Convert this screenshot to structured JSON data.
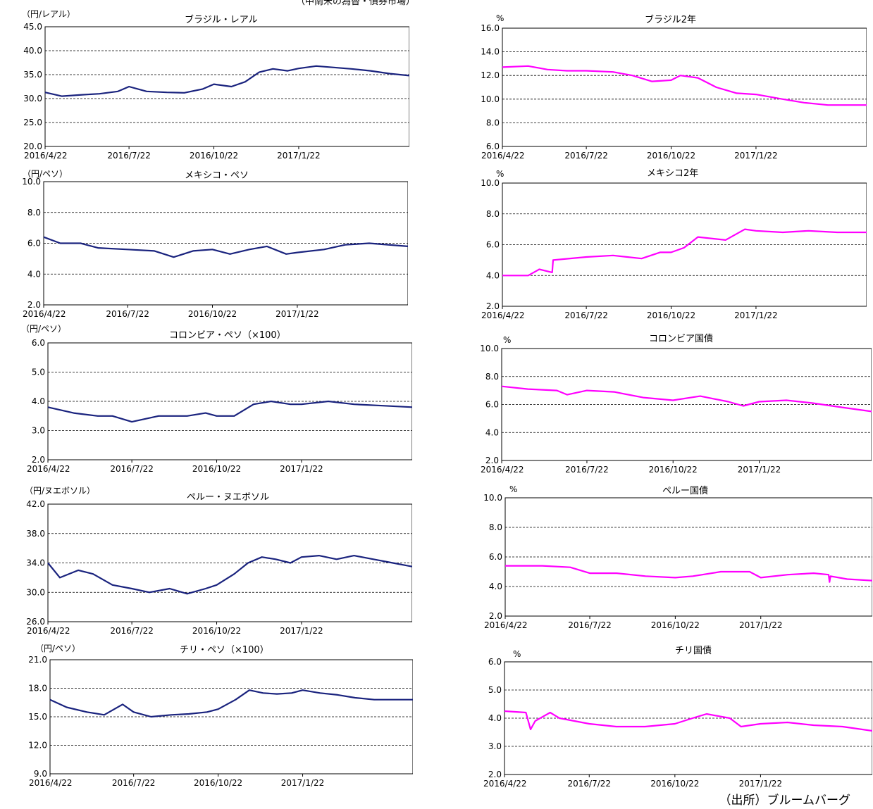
{
  "page": {
    "title": "（中南米の為替・債券市場）",
    "source": "（出所）ブルームバーグ"
  },
  "colors": {
    "currency_line": "#1a237e",
    "bond_line": "#ff00ff"
  },
  "chart_data": [
    {
      "type": "line",
      "title": "ブラジル・レアル",
      "unit": "（円/レアル）",
      "ylim": [
        20,
        45
      ],
      "yticks": [
        "20.0",
        "25.0",
        "30.0",
        "35.0",
        "40.0",
        "45.0"
      ],
      "xticks": [
        "2016/4/22",
        "2016/7/22",
        "2016/10/22",
        "2017/1/22"
      ],
      "xlim": [
        "2016/4/22",
        "2017/5/22"
      ],
      "grid": true,
      "color": "#1a237e",
      "series": [
        {
          "name": "",
          "x": [
            "2016/4/22",
            "2016/5/10",
            "2016/6/1",
            "2016/6/20",
            "2016/7/10",
            "2016/7/22",
            "2016/8/10",
            "2016/9/1",
            "2016/9/20",
            "2016/10/10",
            "2016/10/22",
            "2016/11/10",
            "2016/11/25",
            "2016/12/10",
            "2016/12/25",
            "2017/1/10",
            "2017/1/22",
            "2017/2/10",
            "2017/3/1",
            "2017/3/20",
            "2017/4/10",
            "2017/5/1",
            "2017/5/22"
          ],
          "values": [
            31.3,
            30.5,
            30.8,
            31.0,
            31.5,
            32.5,
            31.5,
            31.3,
            31.2,
            32.0,
            33.0,
            32.5,
            33.5,
            35.5,
            36.2,
            35.8,
            36.3,
            36.8,
            36.5,
            36.2,
            35.8,
            35.2,
            34.8
          ]
        }
      ]
    },
    {
      "type": "line",
      "title": "ブラジル2年",
      "unit": "%",
      "ylim": [
        6,
        16
      ],
      "yticks": [
        "6.0",
        "8.0",
        "10.0",
        "12.0",
        "14.0",
        "16.0"
      ],
      "xticks": [
        "2016/4/22",
        "2016/7/22",
        "2016/10/22",
        "2017/1/22"
      ],
      "xlim": [
        "2016/4/22",
        "2017/5/22"
      ],
      "grid": true,
      "color": "#ff00ff",
      "series": [
        {
          "name": "",
          "x": [
            "2016/4/22",
            "2016/5/20",
            "2016/6/10",
            "2016/7/1",
            "2016/7/22",
            "2016/8/20",
            "2016/9/10",
            "2016/10/1",
            "2016/10/22",
            "2016/11/1",
            "2016/11/20",
            "2016/12/10",
            "2017/1/1",
            "2017/1/22",
            "2017/2/20",
            "2017/3/15",
            "2017/4/10",
            "2017/5/22"
          ],
          "values": [
            12.7,
            12.8,
            12.5,
            12.4,
            12.4,
            12.3,
            12.0,
            11.5,
            11.6,
            12.0,
            11.8,
            11.0,
            10.5,
            10.4,
            10.0,
            9.7,
            9.5,
            9.5
          ]
        }
      ]
    },
    {
      "type": "line",
      "title": "メキシコ・ペソ",
      "unit": "（円/ペソ）",
      "ylim": [
        2,
        10
      ],
      "yticks": [
        "2.0",
        "4.0",
        "6.0",
        "8.0",
        "10.0"
      ],
      "xticks": [
        "2016/4/22",
        "2016/7/22",
        "2016/10/22",
        "2017/1/22"
      ],
      "xlim": [
        "2016/4/22",
        "2017/5/22"
      ],
      "grid": true,
      "color": "#1a237e",
      "series": [
        {
          "name": "",
          "x": [
            "2016/4/22",
            "2016/5/10",
            "2016/6/1",
            "2016/6/20",
            "2016/7/22",
            "2016/8/20",
            "2016/9/10",
            "2016/10/1",
            "2016/10/22",
            "2016/11/10",
            "2016/12/1",
            "2016/12/20",
            "2017/1/10",
            "2017/1/22",
            "2017/2/20",
            "2017/3/15",
            "2017/4/10",
            "2017/5/22"
          ],
          "values": [
            6.4,
            6.0,
            6.0,
            5.7,
            5.6,
            5.5,
            5.1,
            5.5,
            5.6,
            5.3,
            5.6,
            5.8,
            5.3,
            5.4,
            5.6,
            5.9,
            6.0,
            5.8
          ]
        }
      ]
    },
    {
      "type": "line",
      "title": "メキシコ2年",
      "unit": "%",
      "ylim": [
        2,
        10
      ],
      "yticks": [
        "2.0",
        "4.0",
        "6.0",
        "8.0",
        "10.0"
      ],
      "xticks": [
        "2016/4/22",
        "2016/7/22",
        "2016/10/22",
        "2017/1/22"
      ],
      "xlim": [
        "2016/4/22",
        "2017/5/22"
      ],
      "grid": true,
      "color": "#ff00ff",
      "series": [
        {
          "name": "",
          "x": [
            "2016/4/22",
            "2016/5/20",
            "2016/6/1",
            "2016/6/15",
            "2016/6/16",
            "2016/7/22",
            "2016/8/20",
            "2016/9/20",
            "2016/10/10",
            "2016/10/22",
            "2016/11/5",
            "2016/11/20",
            "2016/12/20",
            "2017/1/10",
            "2017/1/22",
            "2017/2/20",
            "2017/3/20",
            "2017/4/20",
            "2017/5/22"
          ],
          "values": [
            4.0,
            4.0,
            4.4,
            4.2,
            5.0,
            5.2,
            5.3,
            5.1,
            5.5,
            5.5,
            5.8,
            6.5,
            6.3,
            7.0,
            6.9,
            6.8,
            6.9,
            6.8,
            6.8
          ]
        }
      ]
    },
    {
      "type": "line",
      "title": "コロンビア・ペソ（×100）",
      "unit": "（円/ペソ）",
      "ylim": [
        2,
        6
      ],
      "yticks": [
        "2.0",
        "3.0",
        "4.0",
        "5.0",
        "6.0"
      ],
      "xticks": [
        "2016/4/22",
        "2016/7/22",
        "2016/10/22",
        "2017/1/22"
      ],
      "xlim": [
        "2016/4/22",
        "2017/5/22"
      ],
      "grid": true,
      "color": "#1a237e",
      "series": [
        {
          "name": "",
          "x": [
            "2016/4/22",
            "2016/5/20",
            "2016/6/15",
            "2016/7/1",
            "2016/7/22",
            "2016/8/20",
            "2016/9/20",
            "2016/10/10",
            "2016/10/22",
            "2016/11/10",
            "2016/12/1",
            "2016/12/20",
            "2017/1/10",
            "2017/1/22",
            "2017/2/20",
            "2017/3/20",
            "2017/4/20",
            "2017/5/22"
          ],
          "values": [
            3.8,
            3.6,
            3.5,
            3.5,
            3.3,
            3.5,
            3.5,
            3.6,
            3.5,
            3.5,
            3.9,
            4.0,
            3.9,
            3.9,
            4.0,
            3.9,
            3.85,
            3.8
          ]
        }
      ]
    },
    {
      "type": "line",
      "title": "コロンビア国債",
      "unit": "%",
      "ylim": [
        2,
        10
      ],
      "yticks": [
        "2.0",
        "4.0",
        "6.0",
        "8.0",
        "10.0"
      ],
      "xticks": [
        "2016/4/22",
        "2016/7/22",
        "2016/10/22",
        "2017/1/22"
      ],
      "xlim": [
        "2016/4/22",
        "2017/5/22"
      ],
      "grid": true,
      "color": "#ff00ff",
      "series": [
        {
          "name": "",
          "x": [
            "2016/4/22",
            "2016/5/20",
            "2016/6/20",
            "2016/7/1",
            "2016/7/22",
            "2016/8/20",
            "2016/9/20",
            "2016/10/22",
            "2016/11/20",
            "2016/12/20",
            "2017/1/5",
            "2017/1/22",
            "2017/2/20",
            "2017/3/20",
            "2017/4/20",
            "2017/5/22"
          ],
          "values": [
            7.3,
            7.1,
            7.0,
            6.7,
            7.0,
            6.9,
            6.5,
            6.3,
            6.6,
            6.2,
            5.9,
            6.2,
            6.3,
            6.1,
            5.8,
            5.5
          ]
        }
      ]
    },
    {
      "type": "line",
      "title": "ペルー・ヌエボソル",
      "unit": "（円/ヌエボソル）",
      "ylim": [
        26,
        42
      ],
      "yticks": [
        "26.0",
        "30.0",
        "34.0",
        "38.0",
        "42.0"
      ],
      "xticks": [
        "2016/4/22",
        "2016/7/22",
        "2016/10/22",
        "2017/1/22"
      ],
      "xlim": [
        "2016/4/22",
        "2017/5/22"
      ],
      "grid": true,
      "color": "#1a237e",
      "series": [
        {
          "name": "",
          "x": [
            "2016/4/22",
            "2016/5/5",
            "2016/5/25",
            "2016/6/10",
            "2016/7/1",
            "2016/7/22",
            "2016/8/10",
            "2016/9/1",
            "2016/9/20",
            "2016/10/10",
            "2016/10/22",
            "2016/11/10",
            "2016/11/25",
            "2016/12/10",
            "2016/12/25",
            "2017/1/10",
            "2017/1/22",
            "2017/2/10",
            "2017/3/1",
            "2017/3/20",
            "2017/4/10",
            "2017/5/1",
            "2017/5/22"
          ],
          "values": [
            34.0,
            32.0,
            33.0,
            32.5,
            31.0,
            30.5,
            30.0,
            30.5,
            29.8,
            30.5,
            31.0,
            32.5,
            34.0,
            34.8,
            34.5,
            34.0,
            34.8,
            35.0,
            34.5,
            35.0,
            34.5,
            34.0,
            33.5
          ]
        }
      ]
    },
    {
      "type": "line",
      "title": "ペルー国債",
      "unit": "%",
      "ylim": [
        2,
        10
      ],
      "yticks": [
        "2.0",
        "4.0",
        "6.0",
        "8.0",
        "10.0"
      ],
      "xticks": [
        "2016/4/22",
        "2016/7/22",
        "2016/10/22",
        "2017/1/22"
      ],
      "xlim": [
        "2016/4/22",
        "2017/5/22"
      ],
      "grid": true,
      "color": "#ff00ff",
      "series": [
        {
          "name": "",
          "x": [
            "2016/4/22",
            "2016/6/1",
            "2016/7/1",
            "2016/7/22",
            "2016/8/20",
            "2016/9/20",
            "2016/10/22",
            "2016/11/10",
            "2016/12/10",
            "2017/1/10",
            "2017/1/22",
            "2017/2/20",
            "2017/3/20",
            "2017/4/5",
            "2017/4/6",
            "2017/4/7",
            "2017/4/25",
            "2017/5/22"
          ],
          "values": [
            5.4,
            5.4,
            5.3,
            4.9,
            4.9,
            4.7,
            4.6,
            4.7,
            5.0,
            5.0,
            4.6,
            4.8,
            4.9,
            4.8,
            4.3,
            4.7,
            4.5,
            4.4
          ]
        }
      ]
    },
    {
      "type": "line",
      "title": "チリ・ペソ（×100）",
      "unit": "（円/ペソ）",
      "ylim": [
        9,
        21
      ],
      "yticks": [
        "9.0",
        "12.0",
        "15.0",
        "18.0",
        "21.0"
      ],
      "xticks": [
        "2016/4/22",
        "2016/7/22",
        "2016/10/22",
        "2017/1/22"
      ],
      "xlim": [
        "2016/4/22",
        "2017/5/22"
      ],
      "grid": true,
      "color": "#1a237e",
      "series": [
        {
          "name": "",
          "x": [
            "2016/4/22",
            "2016/5/10",
            "2016/6/1",
            "2016/6/20",
            "2016/7/10",
            "2016/7/22",
            "2016/8/10",
            "2016/9/1",
            "2016/9/20",
            "2016/10/10",
            "2016/10/22",
            "2016/11/10",
            "2016/11/25",
            "2016/12/10",
            "2016/12/25",
            "2017/1/10",
            "2017/1/22",
            "2017/2/10",
            "2017/3/1",
            "2017/3/20",
            "2017/4/10",
            "2017/5/1",
            "2017/5/22"
          ],
          "values": [
            16.8,
            16.0,
            15.5,
            15.2,
            16.3,
            15.5,
            15.0,
            15.2,
            15.3,
            15.5,
            15.8,
            16.8,
            17.8,
            17.5,
            17.4,
            17.5,
            17.8,
            17.5,
            17.3,
            17.0,
            16.8,
            16.8,
            16.8
          ]
        }
      ]
    },
    {
      "type": "line",
      "title": "チリ国債",
      "unit": "%",
      "ylim": [
        2,
        6
      ],
      "yticks": [
        "2.0",
        "3.0",
        "4.0",
        "5.0",
        "6.0"
      ],
      "xticks": [
        "2016/4/22",
        "2016/7/22",
        "2016/10/22",
        "2017/1/22"
      ],
      "xlim": [
        "2016/4/22",
        "2017/5/22"
      ],
      "grid": true,
      "color": "#ff00ff",
      "series": [
        {
          "name": "",
          "x": [
            "2016/4/22",
            "2016/5/15",
            "2016/5/20",
            "2016/5/25",
            "2016/6/10",
            "2016/6/20",
            "2016/7/22",
            "2016/8/20",
            "2016/9/20",
            "2016/10/22",
            "2016/11/10",
            "2016/11/25",
            "2016/12/20",
            "2017/1/1",
            "2017/1/22",
            "2017/2/20",
            "2017/3/20",
            "2017/4/20",
            "2017/5/22"
          ],
          "values": [
            4.25,
            4.2,
            3.6,
            3.9,
            4.2,
            4.0,
            3.8,
            3.7,
            3.7,
            3.8,
            4.0,
            4.15,
            4.0,
            3.7,
            3.8,
            3.85,
            3.75,
            3.7,
            3.55
          ]
        }
      ]
    }
  ]
}
